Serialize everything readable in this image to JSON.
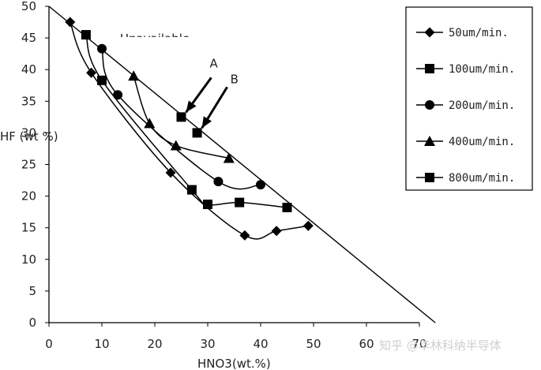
{
  "chart_data": {
    "type": "scatter",
    "xlabel": "HNO3(wt.%)",
    "ylabel": "HF (wt %)",
    "xlim": [
      0,
      70
    ],
    "ylim": [
      0,
      50
    ],
    "x_ticks": [
      0,
      10,
      20,
      30,
      40,
      50,
      60,
      70
    ],
    "y_ticks": [
      0,
      5,
      10,
      15,
      20,
      25,
      30,
      35,
      40,
      45,
      50
    ],
    "grid": false,
    "legend_position": "top-right",
    "overlay_text": "Unavailable",
    "boundary_line": {
      "x": [
        0,
        73
      ],
      "y": [
        50,
        0
      ]
    },
    "annotations": [
      {
        "label": "A",
        "point": {
          "x": 25,
          "y": 32.5
        }
      },
      {
        "label": "B",
        "point": {
          "x": 28,
          "y": 30
        }
      }
    ],
    "series": [
      {
        "name": "50um/min.",
        "marker": "diamond",
        "x": [
          4,
          8,
          23,
          37,
          43,
          49
        ],
        "y": [
          47.5,
          39.5,
          23.7,
          13.8,
          14.5,
          15.3
        ]
      },
      {
        "name": "100um/min.",
        "marker": "square",
        "x": [
          7,
          10,
          27,
          30,
          36,
          45
        ],
        "y": [
          45.5,
          38.3,
          21,
          18.7,
          19,
          18.2
        ]
      },
      {
        "name": "200um/min.",
        "marker": "circle",
        "x": [
          10,
          13,
          32,
          40
        ],
        "y": [
          43.3,
          36,
          22.3,
          21.8
        ]
      },
      {
        "name": "400um/min.",
        "marker": "triangle",
        "x": [
          16,
          19,
          24,
          34
        ],
        "y": [
          39,
          31.5,
          28,
          26
        ]
      },
      {
        "name": "800um/min.",
        "marker": "square",
        "x": [
          25,
          28
        ],
        "y": [
          32.5,
          30
        ]
      }
    ]
  },
  "watermark": "知乎 @华林科纳半导体"
}
